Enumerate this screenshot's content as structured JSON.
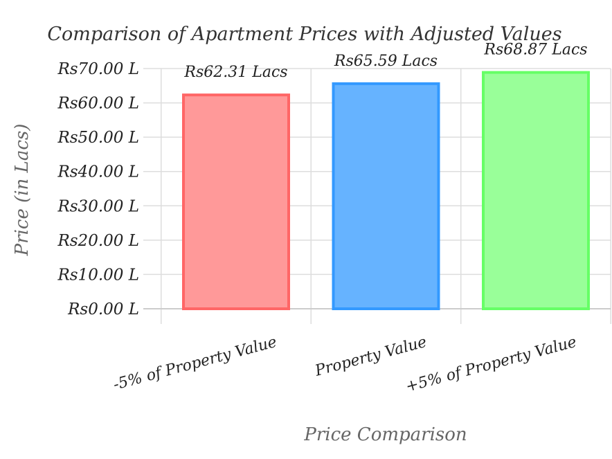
{
  "chart_data": {
    "type": "bar",
    "title": "Comparison of Apartment Prices with Adjusted Values",
    "xlabel": "Price Comparison",
    "ylabel": "Price (in Lacs)",
    "categories": [
      "-5% of Property Value",
      "Property Value",
      "+5% of Property Value"
    ],
    "values": [
      62.31,
      65.59,
      68.87
    ],
    "data_labels": [
      "Rs62.31 Lacs",
      "Rs65.59 Lacs",
      "Rs68.87 Lacs"
    ],
    "ylim": [
      0,
      70
    ],
    "yticks": [
      {
        "value": 0,
        "label": "Rs0.00 L"
      },
      {
        "value": 10,
        "label": "Rs10.00 L"
      },
      {
        "value": 20,
        "label": "Rs20.00 L"
      },
      {
        "value": 30,
        "label": "Rs30.00 L"
      },
      {
        "value": 40,
        "label": "Rs40.00 L"
      },
      {
        "value": 50,
        "label": "Rs50.00 L"
      },
      {
        "value": 60,
        "label": "Rs60.00 L"
      },
      {
        "value": 70,
        "label": "Rs70.00 L"
      }
    ],
    "colors": {
      "fills": [
        "#ff9999",
        "#66b3ff",
        "#99ff99"
      ],
      "strokes": [
        "#ff6666",
        "#3399ff",
        "#66ff66"
      ],
      "grid": "#dddddd"
    },
    "grid": true
  }
}
